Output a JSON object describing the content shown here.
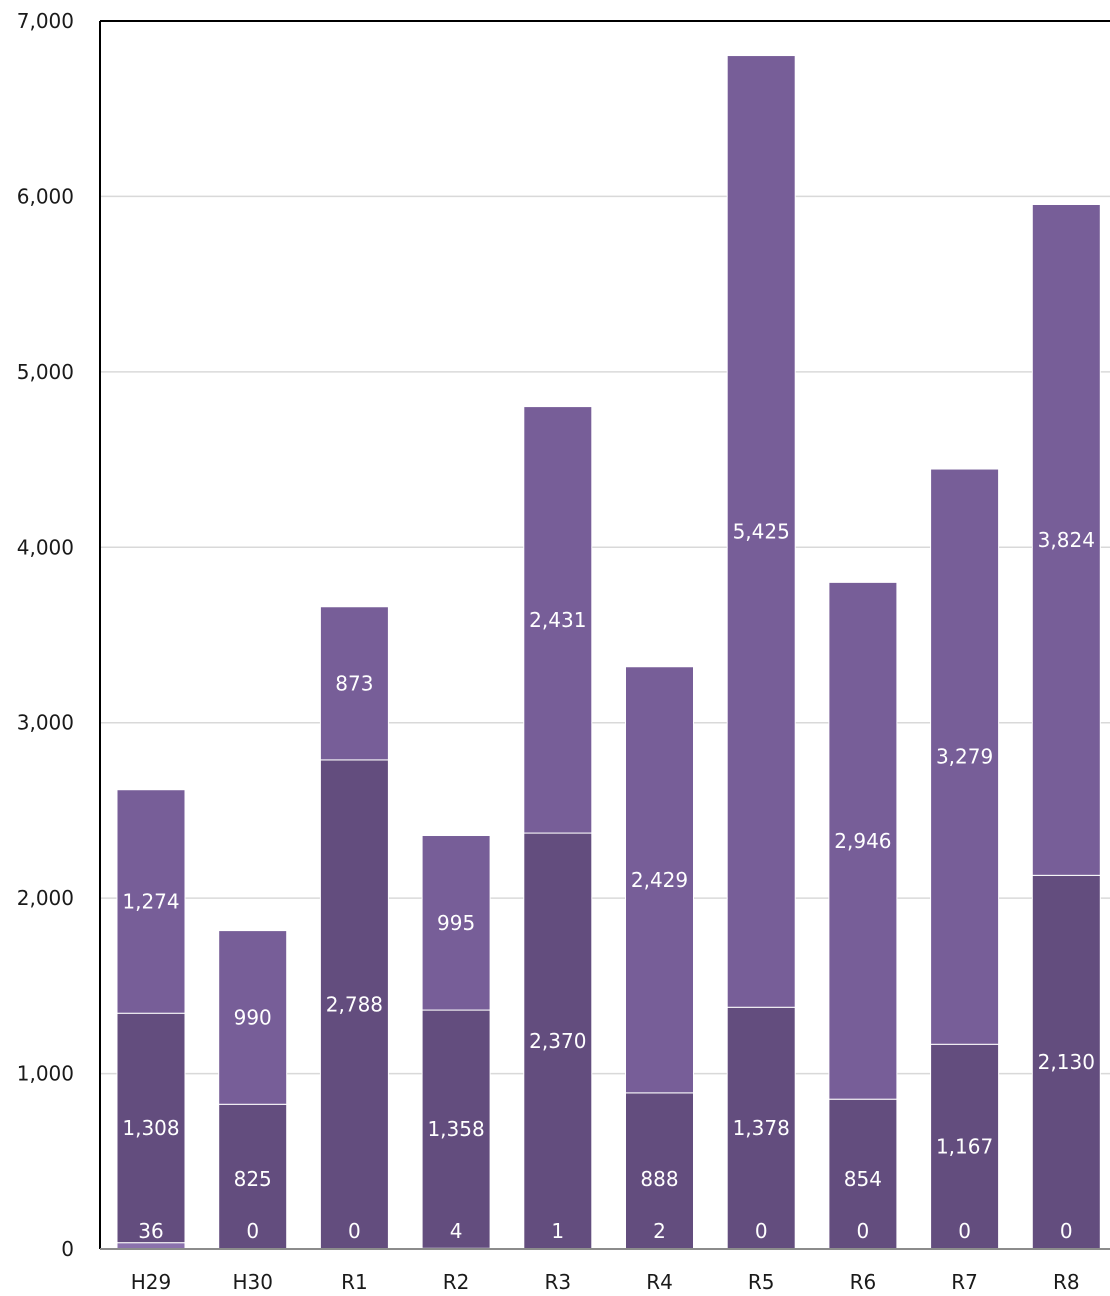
{
  "chart_data": {
    "type": "bar",
    "stacked": true,
    "categories": [
      "H29",
      "H30",
      "R1",
      "R2",
      "R3",
      "R4",
      "R5",
      "R6",
      "R7",
      "R8"
    ],
    "series": [
      {
        "values": [
          36,
          0,
          0,
          4,
          1,
          2,
          0,
          0,
          0,
          0
        ],
        "color": "#8b72ad"
      },
      {
        "values": [
          1308,
          825,
          2788,
          1358,
          2370,
          888,
          1378,
          854,
          1167,
          2130
        ],
        "color": "#634d7e"
      },
      {
        "values": [
          1274,
          990,
          873,
          995,
          2431,
          2429,
          5425,
          2946,
          3279,
          3824
        ],
        "color": "#775e98"
      }
    ],
    "data_labels": [
      [
        "36",
        "0",
        "0",
        "4",
        "1",
        "2",
        "0",
        "0",
        "0",
        "0"
      ],
      [
        "1,308",
        "825",
        "2,788",
        "1,358",
        "2,370",
        "888",
        "1,378",
        "854",
        "1,167",
        "2,130"
      ],
      [
        "1,274",
        "990",
        "873",
        "995",
        "2,431",
        "2,429",
        "5,425",
        "2,946",
        "3,279",
        "3,824"
      ]
    ],
    "ylim": [
      0,
      7000
    ],
    "yticks": [
      0,
      1000,
      2000,
      3000,
      4000,
      5000,
      6000,
      7000
    ],
    "ytick_labels": [
      "0",
      "1,000",
      "2,000",
      "3,000",
      "4,000",
      "5,000",
      "6,000",
      "7,000"
    ],
    "grid": true,
    "legend": "none",
    "gridline_color": "#d9d9d9",
    "axis_color": "#000000"
  }
}
